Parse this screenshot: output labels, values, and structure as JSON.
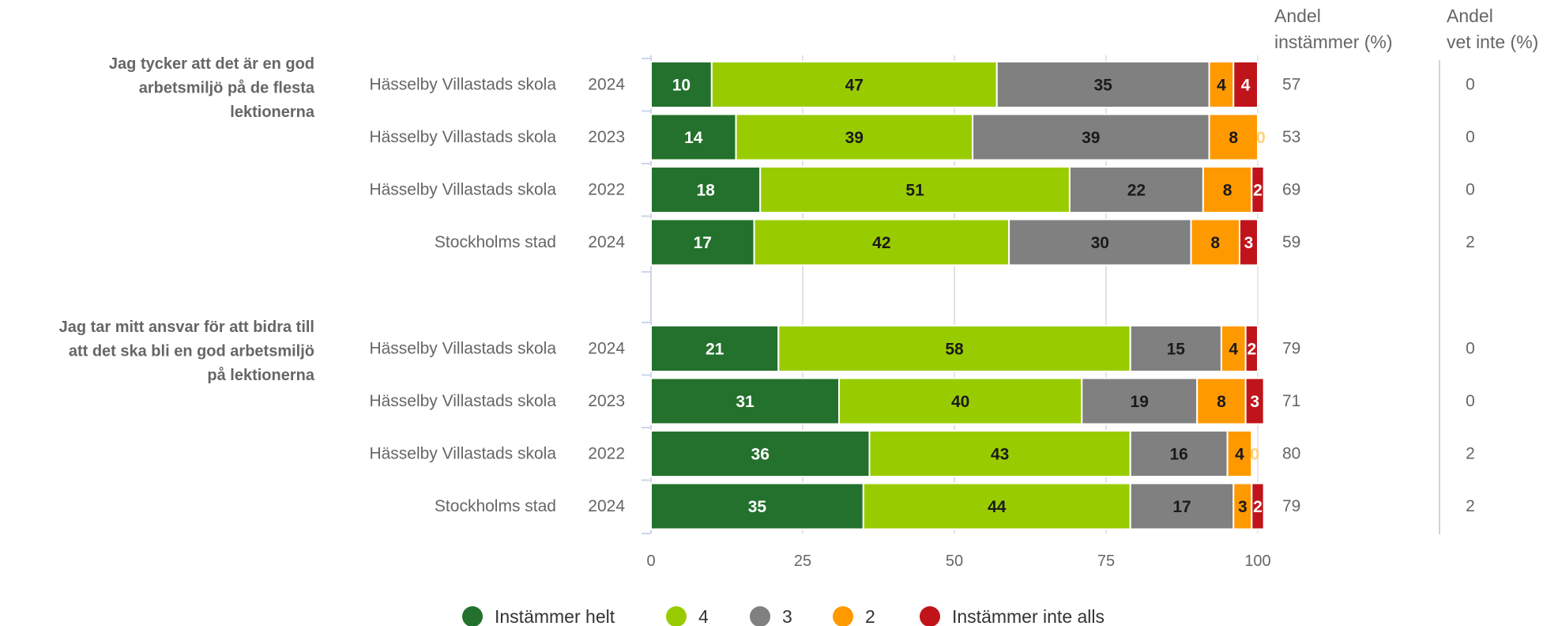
{
  "chart_data": {
    "type": "bar",
    "orientation": "horizontal",
    "stacked": true,
    "xlim": [
      0,
      100
    ],
    "x_ticks": [
      "0",
      "25",
      "50",
      "75",
      "100"
    ],
    "grid": true,
    "legend_position": "bottom",
    "column_headers": {
      "agree": [
        "Andel",
        "instämmer (%)"
      ],
      "dontknow": [
        "Andel",
        "vet inte (%)"
      ]
    },
    "series": [
      {
        "name": "Instämmer helt",
        "color": "#23712c",
        "label_color": "#ffffff"
      },
      {
        "name": "4",
        "color": "#99cc00",
        "label_color": "#1a1a1a"
      },
      {
        "name": "3",
        "color": "#808080",
        "label_color": "#1a1a1a"
      },
      {
        "name": "2",
        "color": "#ff9900",
        "label_color": "#1a1a1a"
      },
      {
        "name": "Instämmer inte alls",
        "color": "#c0141b",
        "label_color": "#ffffff"
      }
    ],
    "groups": [
      {
        "question": [
          "Jag tycker att det är en god",
          "arbetsmiljö på de flesta",
          "lektionerna"
        ],
        "rows": [
          {
            "name": "Hässelby Villastads skola",
            "year": "2024",
            "values": [
              10,
              47,
              35,
              4,
              4
            ],
            "agree": "57",
            "dontknow": "0"
          },
          {
            "name": "Hässelby Villastads skola",
            "year": "2023",
            "values": [
              14,
              39,
              39,
              8,
              0
            ],
            "agree": "53",
            "dontknow": "0"
          },
          {
            "name": "Hässelby Villastads skola",
            "year": "2022",
            "values": [
              18,
              51,
              22,
              8,
              2
            ],
            "agree": "69",
            "dontknow": "0"
          },
          {
            "name": "Stockholms stad",
            "year": "2024",
            "values": [
              17,
              42,
              30,
              8,
              3
            ],
            "agree": "59",
            "dontknow": "2"
          }
        ]
      },
      {
        "question": [
          "Jag tar mitt ansvar för att bidra till",
          "att det ska bli en god arbetsmiljö",
          "på lektionerna"
        ],
        "rows": [
          {
            "name": "Hässelby Villastads skola",
            "year": "2024",
            "values": [
              21,
              58,
              15,
              4,
              2
            ],
            "agree": "79",
            "dontknow": "0"
          },
          {
            "name": "Hässelby Villastads skola",
            "year": "2023",
            "values": [
              31,
              40,
              19,
              8,
              3
            ],
            "agree": "71",
            "dontknow": "0"
          },
          {
            "name": "Hässelby Villastads skola",
            "year": "2022",
            "values": [
              36,
              43,
              16,
              4,
              0
            ],
            "agree": "80",
            "dontknow": "2"
          },
          {
            "name": "Stockholms stad",
            "year": "2024",
            "values": [
              35,
              44,
              17,
              3,
              2
            ],
            "agree": "79",
            "dontknow": "2"
          }
        ]
      }
    ]
  }
}
